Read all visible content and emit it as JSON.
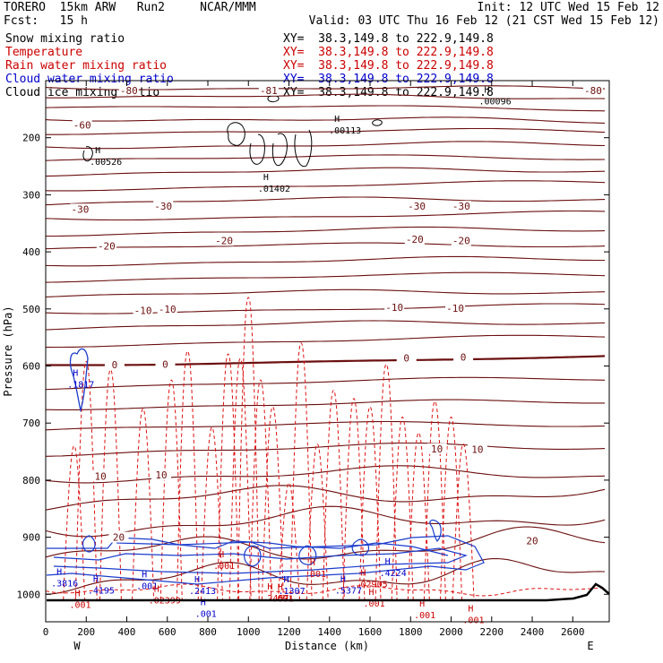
{
  "header": {
    "model_line": "TORERO  15km ARW   Run2     NCAR/MMM",
    "init_line": "Init: 12 UTC Wed 15 Feb 12",
    "fcst_line": "Fcst:   15 h",
    "valid_line": "Valid: 03 UTC Thu 16 Feb 12 (21 CST Wed 15 Feb 12)"
  },
  "fields": [
    {
      "label": "Snow mixing ratio",
      "color": "#000000",
      "xy": "XY=  38.3,149.8 to 222.9,149.8"
    },
    {
      "label": "Temperature",
      "color": "#cc0000",
      "xy": "XY=  38.3,149.8 to 222.9,149.8"
    },
    {
      "label": "Rain water mixing ratio",
      "color": "#cc0000",
      "xy": "XY=  38.3,149.8 to 222.9,149.8"
    },
    {
      "label": "Cloud water mixing ratio",
      "color": "#0000cc",
      "xy": "XY=  38.3,149.8 to 222.9,149.8"
    },
    {
      "label": "Cloud ice mixing ratio",
      "color": "#000000",
      "xy": "XY=  38.3,149.8 to 222.9,149.8"
    }
  ],
  "chart_data": {
    "type": "contour-cross-section",
    "xlabel": "Distance (km)",
    "ylabel": "Pressure (hPa)",
    "xlim": [
      0,
      2780
    ],
    "ylim": [
      1050,
      100
    ],
    "x_ticks": [
      0,
      200,
      400,
      600,
      800,
      1000,
      1200,
      1400,
      1600,
      1800,
      2000,
      2200,
      2400,
      2600
    ],
    "y_ticks": [
      200,
      300,
      400,
      500,
      600,
      700,
      800,
      900,
      1000
    ],
    "left_end_label": "W",
    "right_end_label": "E",
    "temperature_contour_labels": [
      {
        "text": "-80",
        "x": 410,
        "p": 117
      },
      {
        "text": "-81",
        "x": 1100,
        "p": 117
      },
      {
        "text": "-80",
        "x": 2700,
        "p": 117
      },
      {
        "text": "-60",
        "x": 180,
        "p": 178
      },
      {
        "text": "-30",
        "x": 170,
        "p": 325
      },
      {
        "text": "-30",
        "x": 580,
        "p": 320
      },
      {
        "text": "-30",
        "x": 1830,
        "p": 320
      },
      {
        "text": "-30",
        "x": 2050,
        "p": 320
      },
      {
        "text": "-20",
        "x": 300,
        "p": 390
      },
      {
        "text": "-20",
        "x": 880,
        "p": 380
      },
      {
        "text": "-20",
        "x": 1820,
        "p": 378
      },
      {
        "text": "-20",
        "x": 2050,
        "p": 380
      },
      {
        "text": "-10",
        "x": 480,
        "p": 503
      },
      {
        "text": "-10",
        "x": 600,
        "p": 500
      },
      {
        "text": "-10",
        "x": 1720,
        "p": 497
      },
      {
        "text": "-10",
        "x": 2020,
        "p": 499
      },
      {
        "text": "0",
        "x": 340,
        "p": 598
      },
      {
        "text": "0",
        "x": 590,
        "p": 597
      },
      {
        "text": "0",
        "x": 1780,
        "p": 586
      },
      {
        "text": "0",
        "x": 2060,
        "p": 584
      },
      {
        "text": "10",
        "x": 1930,
        "p": 745
      },
      {
        "text": "10",
        "x": 2130,
        "p": 746
      },
      {
        "text": "10",
        "x": 270,
        "p": 793
      },
      {
        "text": "10",
        "x": 570,
        "p": 791
      },
      {
        "text": "20",
        "x": 360,
        "p": 900
      },
      {
        "text": "20",
        "x": 2400,
        "p": 906
      }
    ],
    "maxima_labels": [
      {
        "text": ".00526",
        "x": 270,
        "p": 240,
        "color": "#000000"
      },
      {
        "text": ".01402",
        "x": 1100,
        "p": 287,
        "color": "#000000"
      },
      {
        "text": ".00113",
        "x": 1450,
        "p": 185,
        "color": "#000000"
      },
      {
        "text": ".00096",
        "x": 2190,
        "p": 134,
        "color": "#000000"
      },
      {
        "text": ".1817",
        "x": 160,
        "p": 630,
        "color": "#0000cc"
      },
      {
        "text": ".4195",
        "x": 260,
        "p": 991,
        "color": "#0000cc"
      },
      {
        "text": ".2413",
        "x": 760,
        "p": 992,
        "color": "#0000cc"
      },
      {
        "text": ".5377",
        "x": 1480,
        "p": 991,
        "color": "#0000cc"
      },
      {
        "text": ".4224",
        "x": 1700,
        "p": 960,
        "color": "#0000cc"
      },
      {
        "text": ".3816",
        "x": 80,
        "p": 978,
        "color": "#0000cc"
      },
      {
        "text": ".1307",
        "x": 1200,
        "p": 992,
        "color": "#0000cc"
      },
      {
        "text": ".001",
        "x": 500,
        "p": 983,
        "color": "#0000cc"
      },
      {
        "text": ".001",
        "x": 790,
        "p": 1032,
        "color": "#0000cc"
      },
      {
        "text": ".02399",
        "x": 560,
        "p": 1008,
        "color": "#cc0000"
      },
      {
        "text": ".2457",
        "x": 1120,
        "p": 1004,
        "color": "#cc0000"
      },
      {
        "text": ".02905",
        "x": 1580,
        "p": 980,
        "color": "#cc0000"
      },
      {
        "text": ".001",
        "x": 880,
        "p": 948,
        "color": "#cc0000"
      },
      {
        "text": ".001",
        "x": 1330,
        "p": 962,
        "color": "#cc0000"
      },
      {
        "text": ".001",
        "x": 1170,
        "p": 1005,
        "color": "#cc0000"
      },
      {
        "text": ".001",
        "x": 170,
        "p": 1016,
        "color": "#cc0000"
      },
      {
        "text": ".001",
        "x": 1620,
        "p": 1014,
        "color": "#cc0000"
      },
      {
        "text": ".001",
        "x": 1870,
        "p": 1034,
        "color": "#cc0000"
      },
      {
        "text": ".001",
        "x": 2110,
        "p": 1043,
        "color": "#cc0000"
      }
    ]
  }
}
